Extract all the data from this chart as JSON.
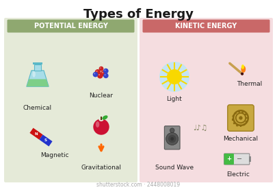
{
  "title": "Types of Energy",
  "title_fontsize": 13,
  "title_fontweight": "bold",
  "title_color": "#1a1a1a",
  "bg_color": "#ffffff",
  "left_panel_color": "#e5ead8",
  "right_panel_color": "#f5dde0",
  "left_header_color": "#8fa870",
  "right_header_color": "#c96868",
  "left_header_text": "POTENTIAL ENERGY",
  "right_header_text": "KINETIC ENERGY",
  "header_fontsize": 7.0,
  "header_text_color": "#ffffff",
  "item_fontsize": 6.5,
  "item_color": "#222222",
  "watermark": "shutterstock.com · 2448008019",
  "watermark_fontsize": 5.5
}
